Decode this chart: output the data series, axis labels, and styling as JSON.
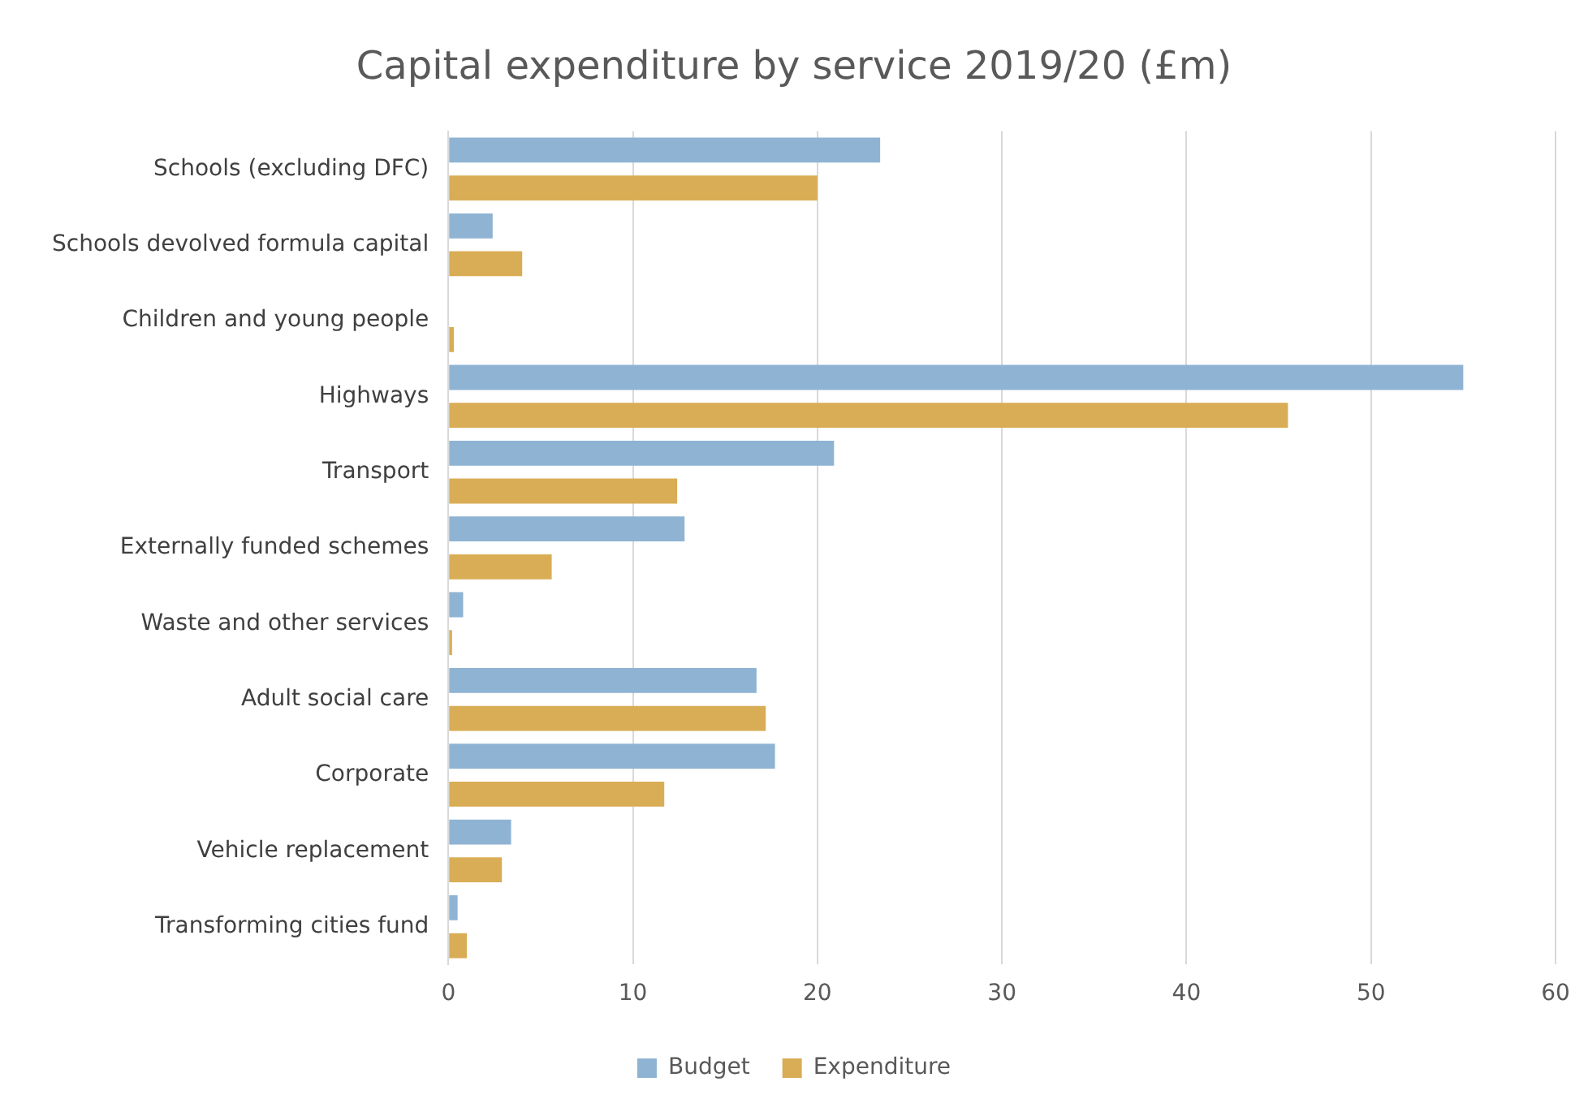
{
  "chart_data": {
    "type": "bar",
    "orientation": "horizontal",
    "title": "Capital expenditure by service 2019/20 (£m)",
    "categories": [
      "Schools (excluding DFC)",
      "Schools devolved formula capital",
      "Children and young people",
      "Highways",
      "Transport",
      "Externally funded schemes",
      "Waste and other services",
      "Adult social care",
      "Corporate",
      "Vehicle replacement",
      "Transforming cities fund"
    ],
    "series": [
      {
        "name": "Budget",
        "color": "#8fb3d3",
        "values": [
          23.4,
          2.4,
          0,
          55,
          20.9,
          12.8,
          0.8,
          16.7,
          17.7,
          3.4,
          0.5
        ]
      },
      {
        "name": "Expenditure",
        "color": "#d9ad55",
        "values": [
          20,
          4,
          0.3,
          45.5,
          12.4,
          5.6,
          0.2,
          17.2,
          11.7,
          2.9,
          1
        ]
      }
    ],
    "xlim": [
      0,
      60
    ],
    "xticks": [
      0,
      10,
      20,
      30,
      40,
      50,
      60
    ],
    "grid": "x",
    "legend": "bottom"
  }
}
